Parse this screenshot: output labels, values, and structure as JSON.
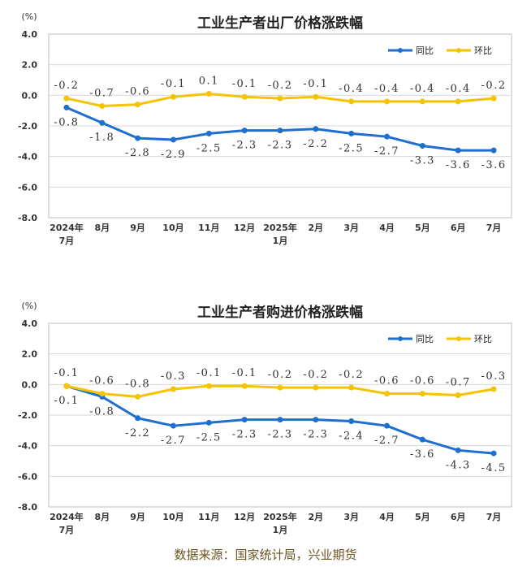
{
  "colors": {
    "yoy": "#1f6fcf",
    "mom": "#f5c400",
    "grid": "#d9d9d9",
    "axis": "#bfbfbf",
    "text": "#333333"
  },
  "source_text": "数据来源：国家统计局，兴业期货",
  "chart_data": [
    {
      "type": "line",
      "title": "工业生产者出厂价格涨跌幅",
      "ylabel": "(%)",
      "ylim": [
        -8.0,
        4.0
      ],
      "yticks": [
        "4.0",
        "2.0",
        "0.0",
        "-2.0",
        "-4.0",
        "-6.0",
        "-8.0"
      ],
      "categories": [
        "2024年7月",
        "8月",
        "9月",
        "10月",
        "11月",
        "12月",
        "2025年1月",
        "2月",
        "3月",
        "4月",
        "5月",
        "6月",
        "7月"
      ],
      "legend_position": "top-right",
      "series": [
        {
          "name": "同比",
          "color": "#1f6fcf",
          "values": [
            -0.8,
            -1.8,
            -2.8,
            -2.9,
            -2.5,
            -2.3,
            -2.3,
            -2.2,
            -2.5,
            -2.7,
            -3.3,
            -3.6,
            -3.6
          ]
        },
        {
          "name": "环比",
          "color": "#f5c400",
          "values": [
            -0.2,
            -0.7,
            -0.6,
            -0.1,
            0.1,
            -0.1,
            -0.2,
            -0.1,
            -0.4,
            -0.4,
            -0.4,
            -0.4,
            -0.2
          ]
        }
      ]
    },
    {
      "type": "line",
      "title": "工业生产者购进价格涨跌幅",
      "ylabel": "(%)",
      "ylim": [
        -8.0,
        4.0
      ],
      "yticks": [
        "4.0",
        "2.0",
        "0.0",
        "-2.0",
        "-4.0",
        "-6.0",
        "-8.0"
      ],
      "categories": [
        "2024年7月",
        "8月",
        "9月",
        "10月",
        "11月",
        "12月",
        "2025年1月",
        "2月",
        "3月",
        "4月",
        "5月",
        "6月",
        "7月"
      ],
      "legend_position": "top-right",
      "series": [
        {
          "name": "同比",
          "color": "#1f6fcf",
          "values": [
            -0.1,
            -0.8,
            -2.2,
            -2.7,
            -2.5,
            -2.3,
            -2.3,
            -2.3,
            -2.4,
            -2.7,
            -3.6,
            -4.3,
            -4.5
          ]
        },
        {
          "name": "环比",
          "color": "#f5c400",
          "values": [
            -0.1,
            -0.6,
            -0.8,
            -0.3,
            -0.1,
            -0.1,
            -0.2,
            -0.2,
            -0.2,
            -0.6,
            -0.6,
            -0.7,
            -0.3
          ]
        }
      ]
    }
  ]
}
